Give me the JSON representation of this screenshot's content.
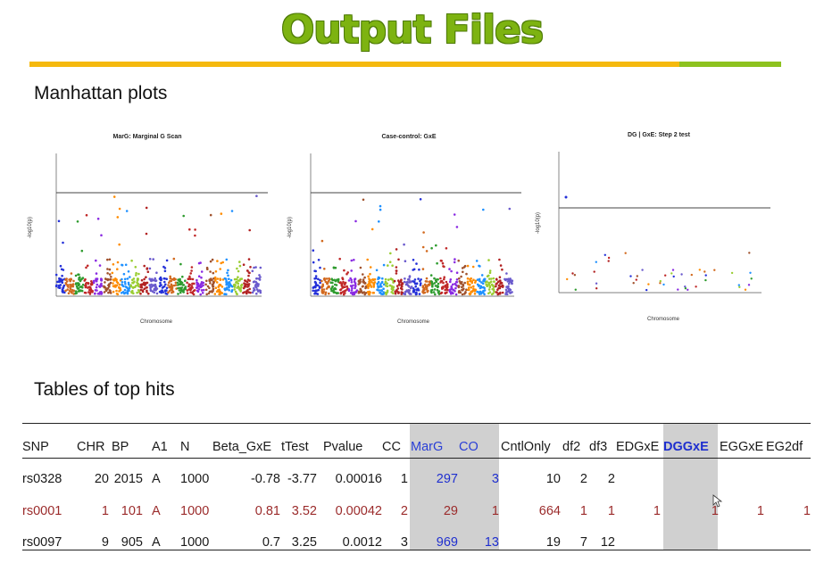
{
  "title": "Output Files",
  "sections": {
    "manhattan": "Manhattan plots",
    "tables": "Tables of top hits"
  },
  "plots": [
    {
      "title": "MarG: Marginal G Scan",
      "xlabel": "Chromosome",
      "ylabel": "-log10(p)"
    },
    {
      "title": "Case-control: GxE",
      "xlabel": "Chromosome",
      "ylabel": "-log10(p)"
    },
    {
      "title": "DG | GxE: Step 2 test",
      "xlabel": "Chromosome",
      "ylabel": "-log10(p)"
    }
  ],
  "table": {
    "headers": [
      "SNP",
      "CHR",
      "BP",
      "A1",
      "N",
      "Beta_GxE",
      "tTest",
      "Pvalue",
      "CC",
      "MarG",
      "CO",
      "CntlOnly",
      "df2",
      "df3",
      "EDGxE",
      "DGGxE",
      "EGGxE",
      "EG2df"
    ],
    "rows": [
      [
        "rs0328",
        "20",
        "2015",
        "A",
        "1000",
        "-0.78",
        "-3.77",
        "0.00016",
        "1",
        "297",
        "3",
        "10",
        "2",
        "2",
        "",
        "",
        "",
        ""
      ],
      [
        "rs0001",
        "1",
        "101",
        "A",
        "1000",
        "0.81",
        "3.52",
        "0.00042",
        "2",
        "29",
        "1",
        "664",
        "1",
        "1",
        "1",
        "1",
        "1",
        "1"
      ],
      [
        "rs0097",
        "9",
        "905",
        "A",
        "1000",
        "0.7",
        "3.25",
        "0.0012",
        "3",
        "969",
        "13",
        "19",
        "7",
        "12",
        "",
        "",
        "",
        ""
      ]
    ]
  },
  "colors": {
    "title_green": "#7db311",
    "bar_orange": "#f5b90d",
    "bar_green": "#8dc21f",
    "highlight_blue": "#1f2fcf",
    "row_red": "#9b2b2b",
    "shade_gray": "#d0d0d0"
  }
}
